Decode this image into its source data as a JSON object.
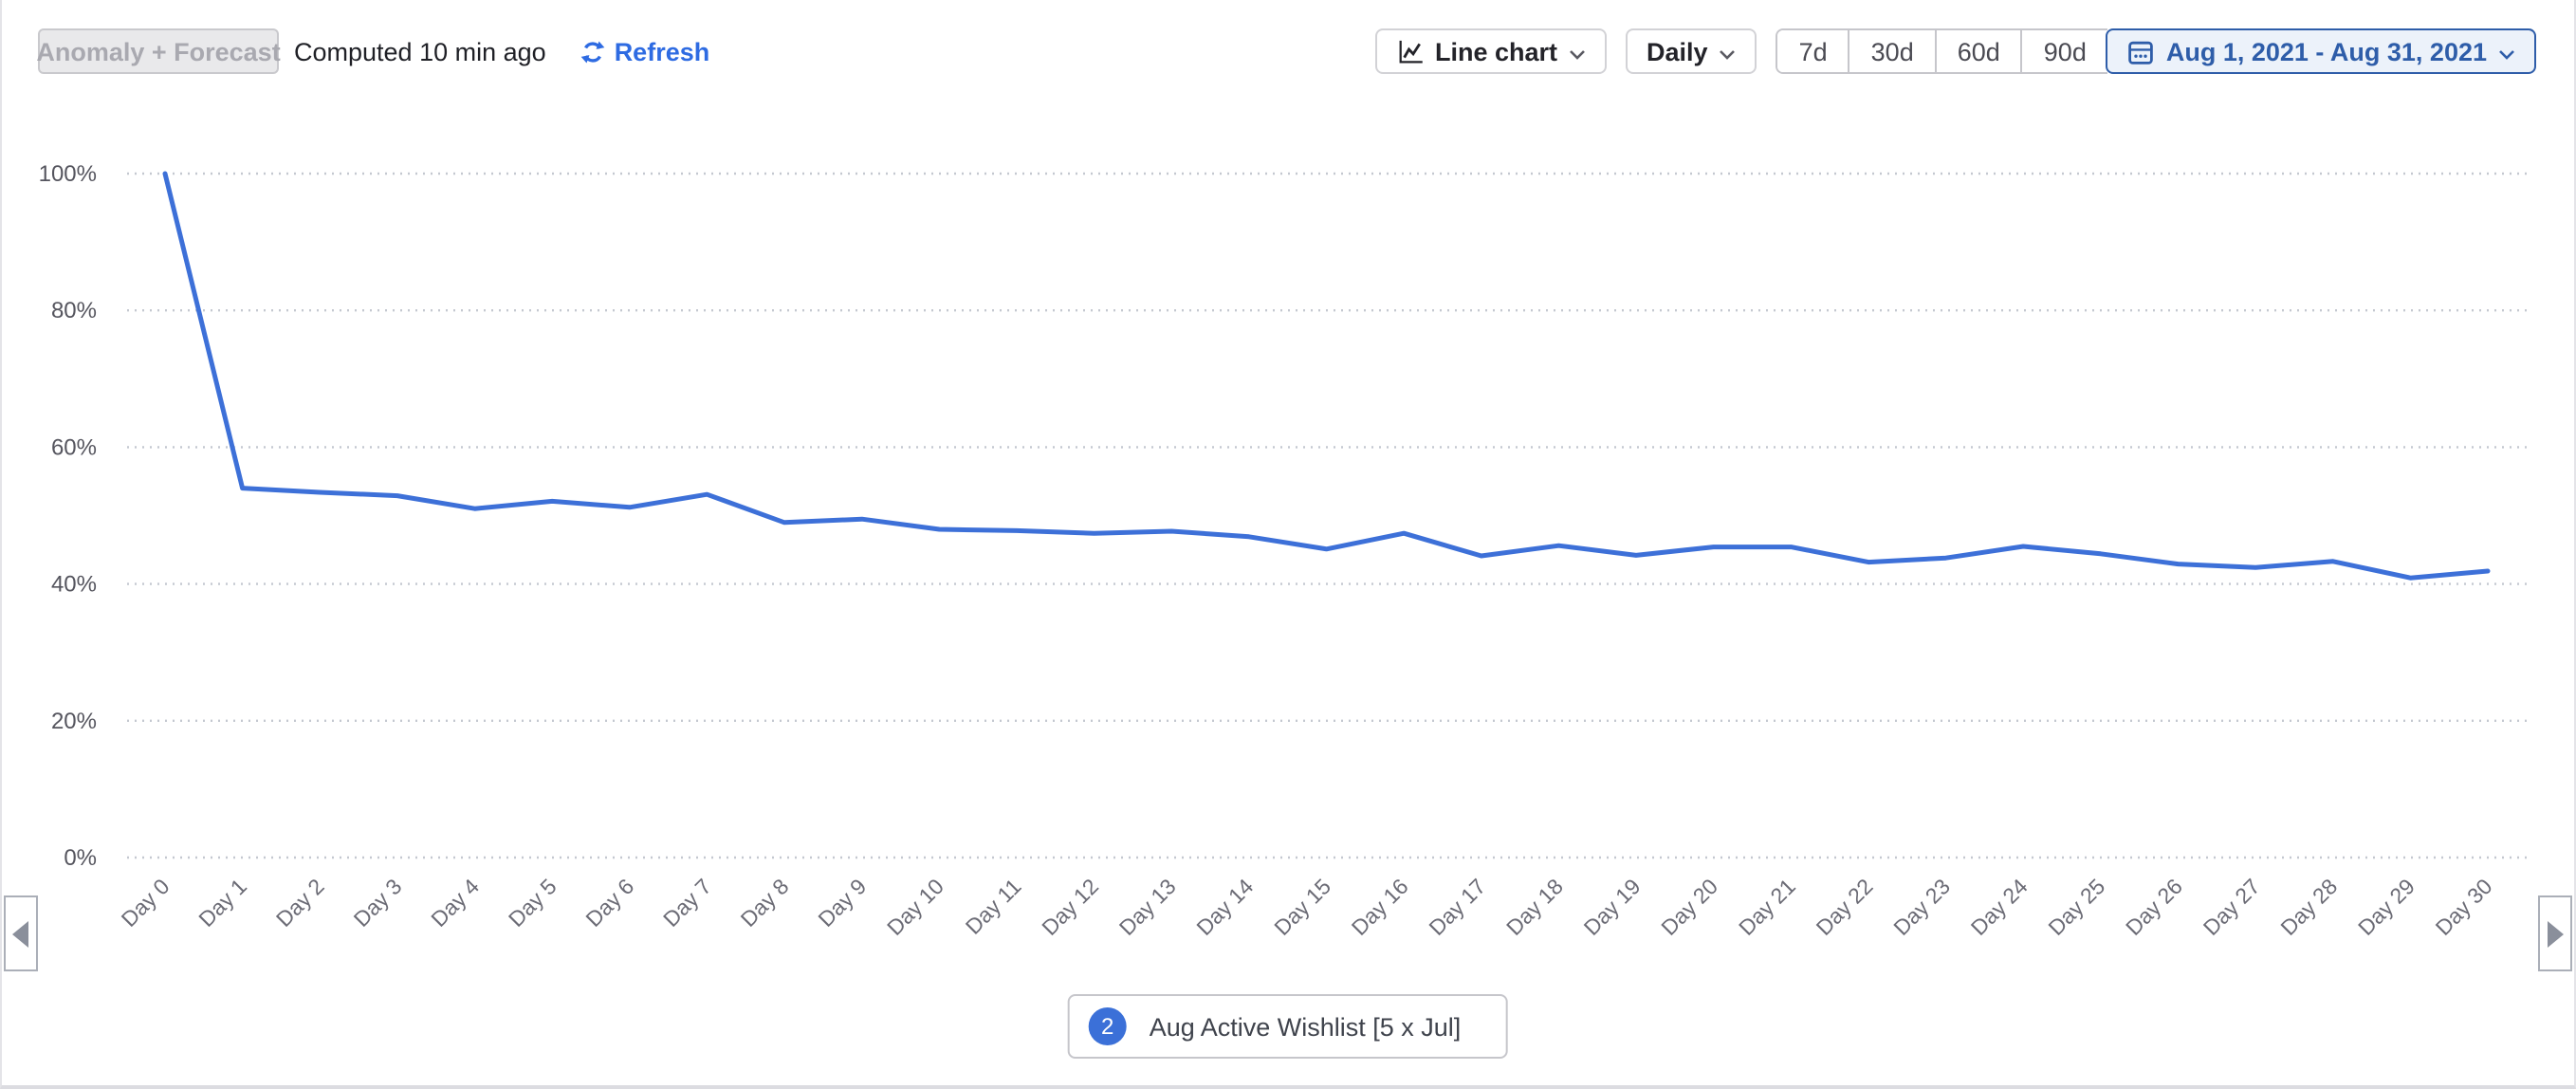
{
  "toolbar": {
    "anomaly_forecast_label": "Anomaly + Forecast",
    "computed_text": "Computed 10 min ago",
    "refresh_label": "Refresh",
    "chart_type_label": "Line chart",
    "granularity_label": "Daily",
    "range_buttons": [
      "7d",
      "30d",
      "60d",
      "90d"
    ],
    "date_range_label": "Aug 1, 2021 - Aug 31, 2021"
  },
  "legend": {
    "badge": "2",
    "series_label": "Aug Active Wishlist [5 x Jul]"
  },
  "colors": {
    "series_line": "#3d70d8",
    "link_blue": "#2e6be2",
    "date_button_blue": "#2e5da9",
    "gridline": "#c4c8d0",
    "y_label": "#55555e",
    "x_label": "#6b6b75"
  },
  "chart_data": {
    "type": "line",
    "title": "",
    "xlabel": "",
    "ylabel": "",
    "x_labels": [
      "Day 0",
      "Day 1",
      "Day 2",
      "Day 3",
      "Day 4",
      "Day 5",
      "Day 6",
      "Day 7",
      "Day 8",
      "Day 9",
      "Day 10",
      "Day 11",
      "Day 12",
      "Day 13",
      "Day 14",
      "Day 15",
      "Day 16",
      "Day 17",
      "Day 18",
      "Day 19",
      "Day 20",
      "Day 21",
      "Day 22",
      "Day 23",
      "Day 24",
      "Day 25",
      "Day 26",
      "Day 27",
      "Day 28",
      "Day 29",
      "Day 30"
    ],
    "series": [
      {
        "name": "Aug Active Wishlist [5 x Jul]",
        "color": "#3d70d8",
        "values": [
          100,
          54,
          53.4,
          52.9,
          51,
          52.1,
          51.2,
          53.1,
          49,
          49.5,
          48,
          47.8,
          47.4,
          47.7,
          46.9,
          45.1,
          47.4,
          44.1,
          45.6,
          44.2,
          45.4,
          45.4,
          43.2,
          43.8,
          45.5,
          44.4,
          42.9,
          42.4,
          43.3,
          40.9,
          41.9
        ]
      }
    ],
    "y_ticks": [
      100,
      80,
      60,
      40,
      20,
      0
    ],
    "y_tick_suffix": "%",
    "ylim": [
      0,
      100
    ],
    "grid": "horizontal-dotted",
    "legend_position": "bottom-center"
  }
}
